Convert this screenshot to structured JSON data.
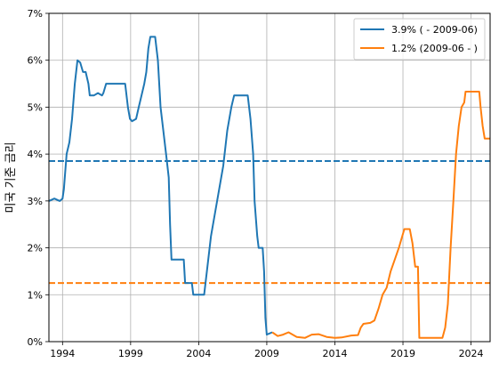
{
  "chart_data": {
    "type": "line",
    "title": "",
    "ylabel": "미국 기준 금리",
    "xlabel": "",
    "xlim": [
      1993.0,
      2025.4
    ],
    "ylim": [
      0,
      7
    ],
    "x_ticks": [
      1994,
      1999,
      2004,
      2009,
      2014,
      2019,
      2024
    ],
    "x_tick_labels": [
      "1994",
      "1999",
      "2004",
      "2009",
      "2014",
      "2019",
      "2024"
    ],
    "y_ticks": [
      0,
      1,
      2,
      3,
      4,
      5,
      6,
      7
    ],
    "y_tick_labels": [
      "0%",
      "1%",
      "2%",
      "3%",
      "4%",
      "5%",
      "6%",
      "7%"
    ],
    "grid": true,
    "legend_position": "top-right",
    "series": [
      {
        "name": "3.9% ( - 2009-06)",
        "color": "#1f77b4",
        "mean": 3.85,
        "points": [
          [
            1993.0,
            3.0
          ],
          [
            1993.4,
            3.05
          ],
          [
            1993.8,
            3.0
          ],
          [
            1994.0,
            3.05
          ],
          [
            1994.1,
            3.25
          ],
          [
            1994.3,
            4.0
          ],
          [
            1994.5,
            4.25
          ],
          [
            1994.7,
            4.75
          ],
          [
            1994.9,
            5.5
          ],
          [
            1995.1,
            6.0
          ],
          [
            1995.3,
            5.95
          ],
          [
            1995.5,
            5.75
          ],
          [
            1995.7,
            5.75
          ],
          [
            1995.9,
            5.5
          ],
          [
            1996.0,
            5.25
          ],
          [
            1996.3,
            5.25
          ],
          [
            1996.6,
            5.3
          ],
          [
            1996.9,
            5.25
          ],
          [
            1997.0,
            5.3
          ],
          [
            1997.2,
            5.5
          ],
          [
            1997.5,
            5.5
          ],
          [
            1997.8,
            5.5
          ],
          [
            1998.0,
            5.5
          ],
          [
            1998.3,
            5.5
          ],
          [
            1998.6,
            5.5
          ],
          [
            1998.8,
            5.0
          ],
          [
            1998.95,
            4.75
          ],
          [
            1999.1,
            4.7
          ],
          [
            1999.4,
            4.75
          ],
          [
            1999.6,
            5.0
          ],
          [
            1999.8,
            5.25
          ],
          [
            2000.0,
            5.5
          ],
          [
            2000.15,
            5.75
          ],
          [
            2000.3,
            6.25
          ],
          [
            2000.45,
            6.5
          ],
          [
            2000.8,
            6.5
          ],
          [
            2001.0,
            6.0
          ],
          [
            2001.2,
            5.0
          ],
          [
            2001.4,
            4.5
          ],
          [
            2001.6,
            4.0
          ],
          [
            2001.8,
            3.5
          ],
          [
            2001.9,
            2.5
          ],
          [
            2002.0,
            1.75
          ],
          [
            2002.5,
            1.75
          ],
          [
            2002.9,
            1.75
          ],
          [
            2003.0,
            1.25
          ],
          [
            2003.5,
            1.25
          ],
          [
            2003.6,
            1.0
          ],
          [
            2004.4,
            1.0
          ],
          [
            2004.6,
            1.5
          ],
          [
            2004.9,
            2.25
          ],
          [
            2005.2,
            2.75
          ],
          [
            2005.5,
            3.25
          ],
          [
            2005.8,
            3.75
          ],
          [
            2006.1,
            4.5
          ],
          [
            2006.4,
            5.0
          ],
          [
            2006.6,
            5.25
          ],
          [
            2007.6,
            5.25
          ],
          [
            2007.8,
            4.75
          ],
          [
            2008.0,
            4.0
          ],
          [
            2008.1,
            3.0
          ],
          [
            2008.3,
            2.25
          ],
          [
            2008.4,
            2.0
          ],
          [
            2008.7,
            2.0
          ],
          [
            2008.8,
            1.5
          ],
          [
            2008.9,
            0.5
          ],
          [
            2009.0,
            0.15
          ],
          [
            2009.4,
            0.2
          ]
        ]
      },
      {
        "name": "1.2% (2009-06 - )",
        "color": "#ff7f0e",
        "mean": 1.25,
        "points": [
          [
            2009.4,
            0.2
          ],
          [
            2009.8,
            0.12
          ],
          [
            2010.2,
            0.15
          ],
          [
            2010.6,
            0.2
          ],
          [
            2011.2,
            0.1
          ],
          [
            2011.8,
            0.08
          ],
          [
            2012.3,
            0.15
          ],
          [
            2012.8,
            0.16
          ],
          [
            2013.4,
            0.1
          ],
          [
            2014.0,
            0.08
          ],
          [
            2014.5,
            0.09
          ],
          [
            2015.2,
            0.13
          ],
          [
            2015.7,
            0.14
          ],
          [
            2015.9,
            0.3
          ],
          [
            2016.1,
            0.38
          ],
          [
            2016.6,
            0.4
          ],
          [
            2016.9,
            0.45
          ],
          [
            2017.2,
            0.7
          ],
          [
            2017.5,
            1.0
          ],
          [
            2017.8,
            1.15
          ],
          [
            2018.1,
            1.5
          ],
          [
            2018.4,
            1.75
          ],
          [
            2018.7,
            2.0
          ],
          [
            2018.9,
            2.2
          ],
          [
            2019.1,
            2.4
          ],
          [
            2019.5,
            2.4
          ],
          [
            2019.7,
            2.1
          ],
          [
            2019.9,
            1.6
          ],
          [
            2020.1,
            1.6
          ],
          [
            2020.2,
            0.08
          ],
          [
            2020.8,
            0.08
          ],
          [
            2021.5,
            0.08
          ],
          [
            2021.9,
            0.08
          ],
          [
            2022.1,
            0.3
          ],
          [
            2022.3,
            0.8
          ],
          [
            2022.5,
            2.0
          ],
          [
            2022.7,
            3.0
          ],
          [
            2022.9,
            4.0
          ],
          [
            2023.1,
            4.6
          ],
          [
            2023.3,
            5.0
          ],
          [
            2023.5,
            5.1
          ],
          [
            2023.6,
            5.33
          ],
          [
            2024.6,
            5.33
          ],
          [
            2024.7,
            5.0
          ],
          [
            2024.85,
            4.6
          ],
          [
            2025.0,
            4.33
          ],
          [
            2025.4,
            4.33
          ]
        ]
      }
    ]
  }
}
